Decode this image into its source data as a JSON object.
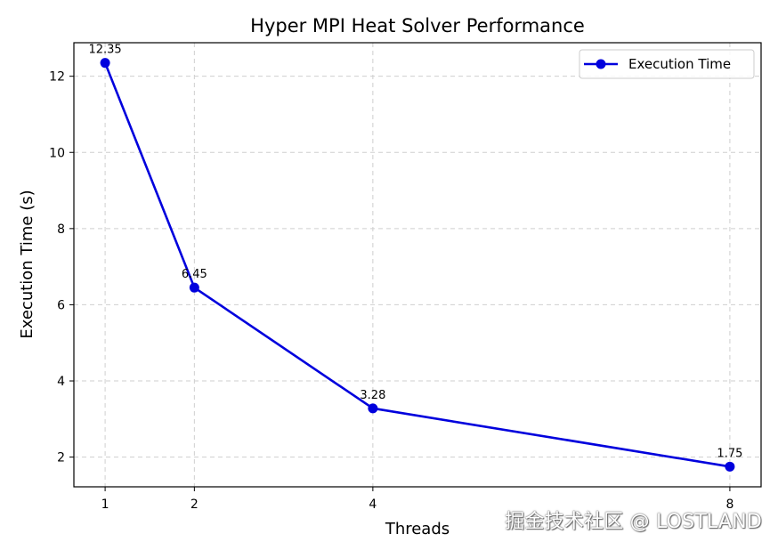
{
  "chart_data": {
    "type": "line",
    "title": "Hyper MPI Heat Solver Performance",
    "xlabel": "Threads",
    "ylabel": "Execution Time (s)",
    "x": [
      1,
      2,
      4,
      8
    ],
    "series": [
      {
        "name": "Execution Time",
        "values": [
          12.35,
          6.45,
          3.28,
          1.75
        ],
        "labels": [
          "12.35",
          "6.45",
          "3.28",
          "1.75"
        ],
        "color": "#0000dd"
      }
    ],
    "xticks": [
      "1",
      "2",
      "4",
      "8"
    ],
    "yticks": [
      "2",
      "4",
      "6",
      "8",
      "10",
      "12"
    ],
    "xlim": [
      0.65,
      8.35
    ],
    "ylim": [
      1.22,
      12.88
    ],
    "grid": true,
    "legend_position": "top-right"
  },
  "watermark": "掘金技术社区 @ LOSTLAND"
}
